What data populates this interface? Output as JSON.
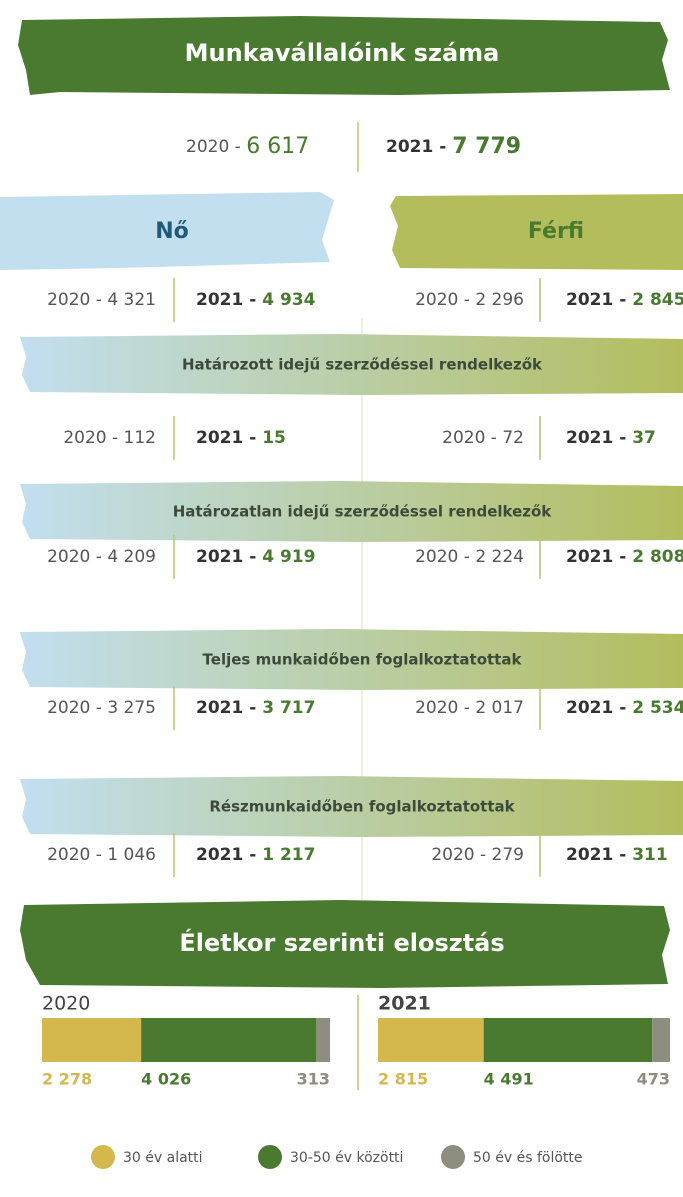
{
  "header": {
    "title": "Munkavállalóink száma",
    "prev_prefix": "2020 - ",
    "curr_prefix": "2021 - ",
    "total_2020": "6 617",
    "total_2021": "7 779"
  },
  "genders": {
    "female": "Nő",
    "male": "Férfi"
  },
  "rows": [
    {
      "title": null,
      "female": [
        "4 321",
        "4 934"
      ],
      "male": [
        "2 296",
        "2 845"
      ]
    },
    {
      "title": "Határozott idejű szerződéssel rendelkezők",
      "female": [
        "112",
        "15"
      ],
      "male": [
        "72",
        "37"
      ]
    },
    {
      "title": "Határozatlan idejű szerződéssel rendelkezők",
      "female": [
        "4 209",
        "4 919"
      ],
      "male": [
        "2 224",
        "2 808"
      ]
    },
    {
      "title": "Teljes munkaidőben foglalkoztatottak",
      "female": [
        "3 275",
        "3 717"
      ],
      "male": [
        "2 017",
        "2 534"
      ]
    },
    {
      "title": "Részmunkaidőben foglalkoztatottak",
      "female": [
        "1 046",
        "1 217"
      ],
      "male": [
        "279",
        "311"
      ]
    }
  ],
  "age": {
    "title": "Életkor szerinti elosztás",
    "groups": [
      "30 év alatti",
      "30-50 év közötti",
      "50 év és fölötte"
    ],
    "colors": [
      "#d4b84e",
      "#4a7a30",
      "#8f8d80"
    ],
    "bars": [
      {
        "year": "2020",
        "values": [
          2278,
          4026,
          313
        ],
        "value_labels": [
          "2 278",
          "4 026",
          "313"
        ]
      },
      {
        "year": "2021",
        "values": [
          2815,
          4491,
          473
        ],
        "value_labels": [
          "2 815",
          "4 491",
          "473"
        ]
      }
    ]
  }
}
